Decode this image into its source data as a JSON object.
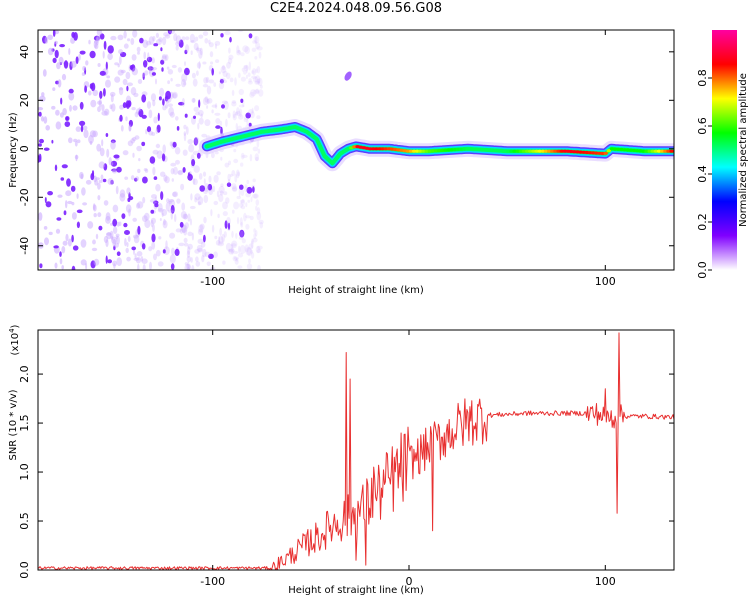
{
  "title": "C2E4.2024.048.09.56.G08",
  "chart_data": [
    {
      "type": "heatmap",
      "xlabel": "Height of straight line (km)",
      "ylabel": "Frequency (Hz)",
      "xlim": [
        -189,
        135
      ],
      "ylim": [
        -50,
        49
      ],
      "x_ticks": [
        -100,
        100
      ],
      "y_ticks": [
        -40,
        -20,
        0,
        20,
        40
      ],
      "colorbar": {
        "label": "Normalized spectral amplitude",
        "range": [
          0,
          1
        ],
        "ticks": [
          "0.0",
          "0.2",
          "0.4",
          "0.6",
          "0.8"
        ],
        "colors": [
          "#ffffff",
          "#8000ff",
          "#0000ff",
          "#00ffff",
          "#00ff00",
          "#ffff00",
          "#ff0000",
          "#ff00a0"
        ]
      },
      "ridge": {
        "x": [
          -103,
          -95,
          -85,
          -75,
          -65,
          -58,
          -52,
          -47,
          -43,
          -39,
          -35,
          -31,
          -27,
          -20,
          -10,
          0,
          10,
          30,
          50,
          80,
          100,
          103,
          120,
          135
        ],
        "y": [
          1,
          3,
          5,
          7,
          8,
          9,
          7,
          4,
          -3,
          -6,
          -2,
          0,
          1,
          0,
          0,
          -1,
          -1,
          0,
          -1,
          -1,
          -2,
          0,
          -1,
          -1
        ],
        "amplitude": [
          0.3,
          0.35,
          0.4,
          0.45,
          0.45,
          0.5,
          0.45,
          0.4,
          0.3,
          0.3,
          0.4,
          0.5,
          0.9,
          0.9,
          0.85,
          0.8,
          0.65,
          0.55,
          0.55,
          0.9,
          0.85,
          0.6,
          0.6,
          0.9
        ]
      },
      "noise_region_x": [
        -189,
        -75
      ]
    },
    {
      "type": "line",
      "xlabel": "Height of straight line (km)",
      "ylabel": "SNR (10 * v/v)",
      "yscale_label": "(x10",
      "yscale_exponent": "4",
      "yscale_suffix": ")",
      "xlim": [
        -189,
        135
      ],
      "ylim": [
        0,
        2.45
      ],
      "x_ticks": [
        -100,
        0,
        100
      ],
      "y_ticks": [
        "0.0",
        "0.5",
        "1.0",
        "1.5",
        "2.0"
      ],
      "series": [
        {
          "color": "#e83030",
          "envelope_x": [
            -189,
            -70,
            -60,
            -50,
            -45,
            -40,
            -35,
            -30,
            -25,
            -20,
            -15,
            -10,
            -5,
            0,
            10,
            20,
            30,
            40,
            60,
            80,
            95,
            100,
            104,
            106,
            108,
            110,
            120,
            135
          ],
          "envelope_y": [
            0.02,
            0.02,
            0.15,
            0.3,
            0.35,
            0.45,
            0.5,
            0.55,
            0.6,
            0.7,
            0.8,
            0.9,
            1.0,
            1.1,
            1.25,
            1.4,
            1.52,
            1.58,
            1.6,
            1.6,
            1.6,
            1.57,
            1.55,
            1.58,
            1.57,
            1.57,
            1.57,
            1.56
          ],
          "spikes": [
            {
              "x": -32,
              "y": 2.22
            },
            {
              "x": -30,
              "y": 1.95
            },
            {
              "x": -27,
              "y": 0.1
            },
            {
              "x": -22,
              "y": 0.05
            },
            {
              "x": -18,
              "y": 1.05
            },
            {
              "x": 12,
              "y": 0.4
            },
            {
              "x": 100,
              "y": 1.85
            },
            {
              "x": 106,
              "y": 0.58
            },
            {
              "x": 107,
              "y": 2.42
            }
          ]
        }
      ]
    }
  ]
}
